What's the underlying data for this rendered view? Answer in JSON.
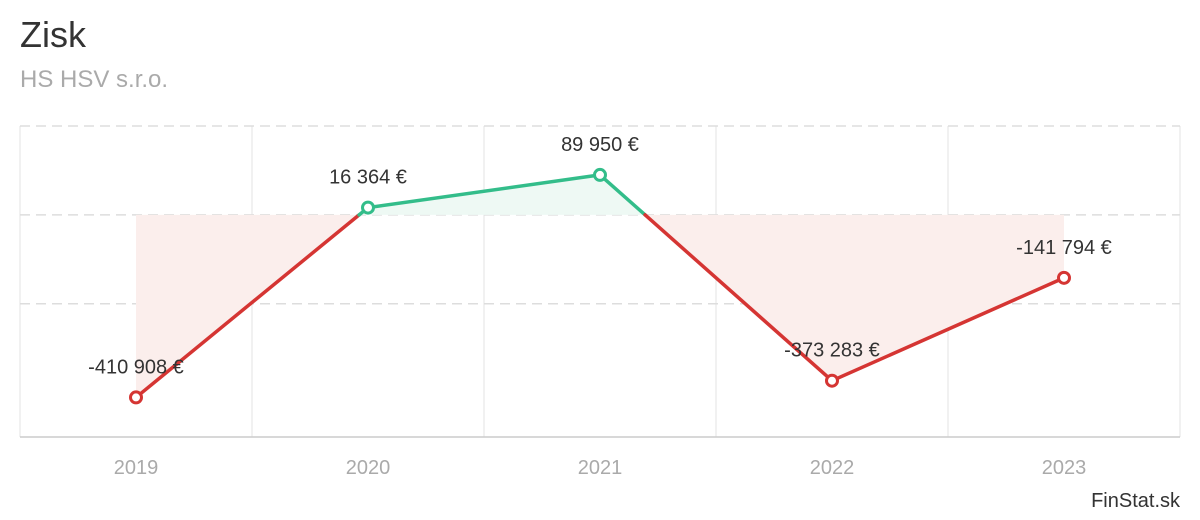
{
  "header": {
    "title": "Zisk",
    "subtitle": "HS HSV s.r.o."
  },
  "credit": "FinStat.sk",
  "colors": {
    "positive": "#33bd8a",
    "negative": "#d53533",
    "positive_fill": "#eef9f4",
    "negative_fill": "#fbeeec",
    "grid": "#e3e3e3"
  },
  "chart_data": {
    "type": "line",
    "title": "Zisk",
    "subtitle": "HS HSV s.r.o.",
    "categories": [
      "2019",
      "2020",
      "2021",
      "2022",
      "2023"
    ],
    "values": [
      -410908,
      16364,
      89950,
      -373283,
      -141794
    ],
    "data_labels": [
      "-410 908 €",
      "16 364 €",
      "89 950 €",
      "-373 283 €",
      "-141 794 €"
    ],
    "ylim": [
      -500000,
      200000
    ],
    "baseline": 0,
    "grid": true,
    "legend": "none",
    "area_fill_to_zero": true
  }
}
